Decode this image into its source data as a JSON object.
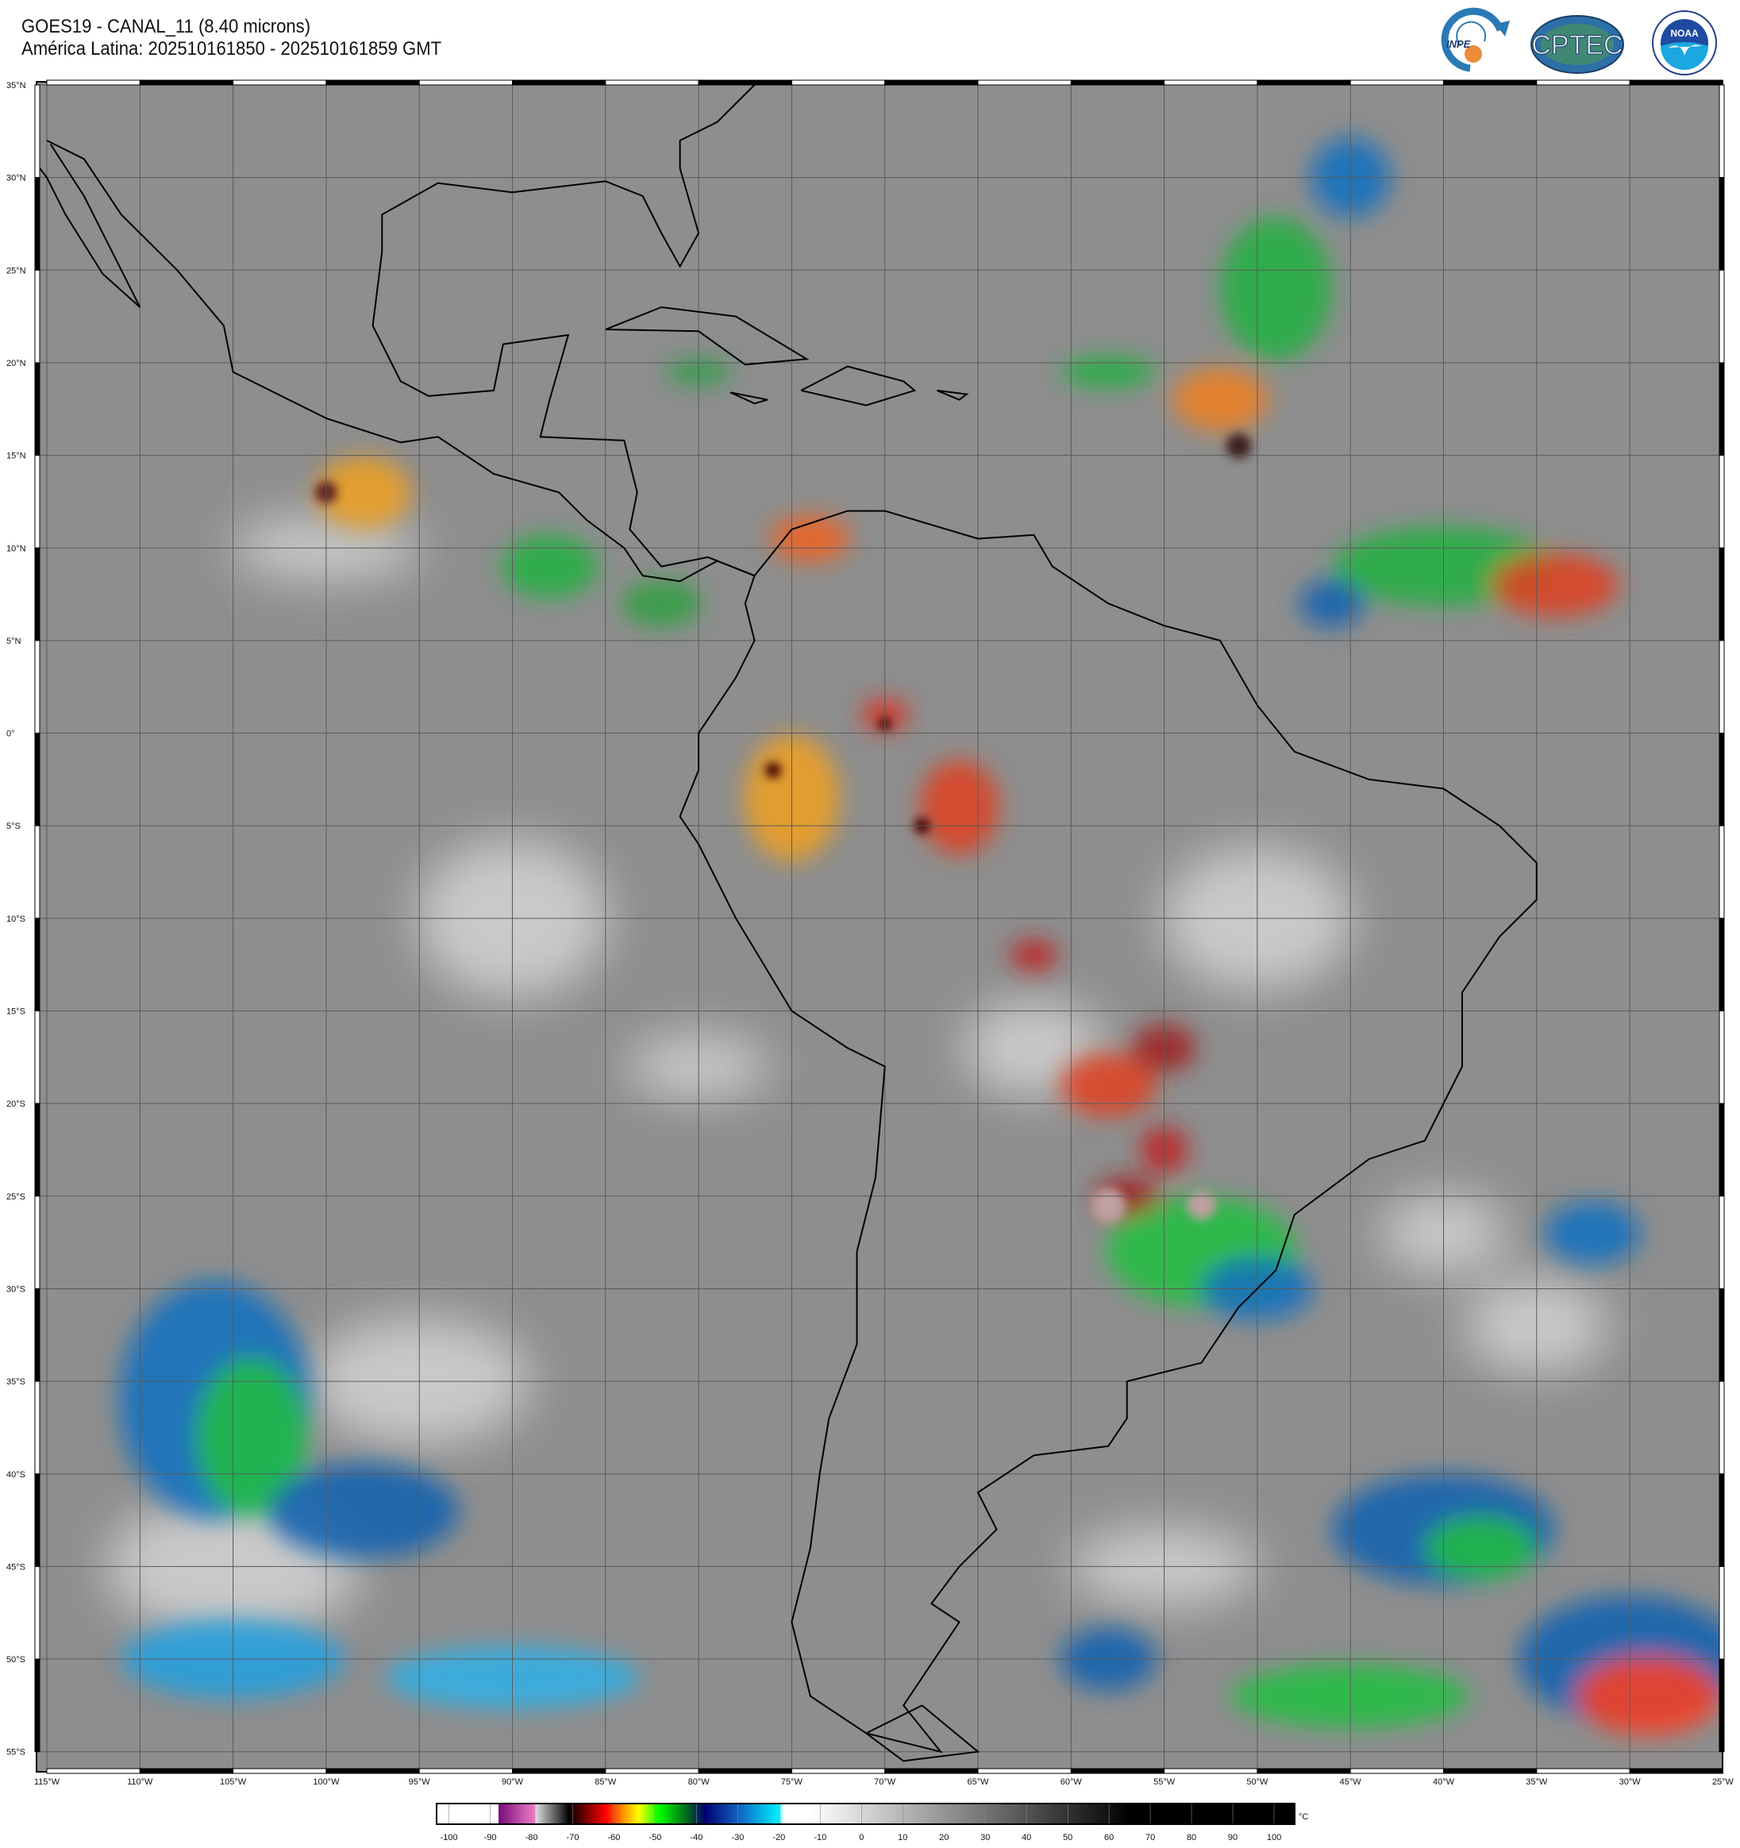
{
  "header": {
    "title": "GOES19 - CANAL_11 (8.40 microns)",
    "subtitle": "América Latina: 202510161850 - 202510161859 GMT"
  },
  "logos": {
    "inpe": "INPE",
    "cptec": "CPTEC",
    "noaa": "NOAA",
    "noaa_ring": "NATIONAL OCEANIC AND ATMOSPHERIC ADMINISTRATION · U.S. DEPARTMENT OF COMMERCE"
  },
  "map": {
    "lat_labels": [
      "35°N",
      "30°N",
      "25°N",
      "20°N",
      "15°N",
      "10°N",
      "5°N",
      "0°",
      "5°S",
      "10°S",
      "15°S",
      "20°S",
      "25°S",
      "30°S",
      "35°S",
      "40°S",
      "45°S",
      "50°S",
      "55°S"
    ],
    "lat_values": [
      35,
      30,
      25,
      20,
      15,
      10,
      5,
      0,
      -5,
      -10,
      -15,
      -20,
      -25,
      -30,
      -35,
      -40,
      -45,
      -50,
      -55
    ],
    "lon_labels": [
      "115°W",
      "110°W",
      "105°W",
      "100°W",
      "95°W",
      "90°W",
      "85°W",
      "80°W",
      "75°W",
      "70°W",
      "65°W",
      "60°W",
      "55°W",
      "50°W",
      "45°W",
      "40°W",
      "35°W",
      "30°W",
      "25°W"
    ],
    "lon_values": [
      -115,
      -110,
      -105,
      -100,
      -95,
      -90,
      -85,
      -80,
      -75,
      -70,
      -65,
      -60,
      -55,
      -50,
      -45,
      -40,
      -35,
      -30,
      -25
    ],
    "extent": {
      "lon": [
        -115,
        -25
      ],
      "lat": [
        -55,
        35
      ]
    },
    "grid_step_deg": 5,
    "background_color": "#8e8e8e",
    "coast_color": "#000000"
  },
  "colorbar": {
    "unit": "°C",
    "ticks": [
      "-100",
      "-90",
      "-80",
      "-70",
      "-60",
      "-50",
      "-40",
      "-30",
      "-20",
      "-10",
      "0",
      "10",
      "20",
      "30",
      "40",
      "50",
      "60",
      "70",
      "80",
      "90",
      "100"
    ],
    "tick_values": [
      -100,
      -90,
      -80,
      -70,
      -60,
      -50,
      -40,
      -30,
      -20,
      -10,
      0,
      10,
      20,
      30,
      40,
      50,
      60,
      70,
      80,
      90,
      100
    ],
    "range": [
      -103,
      105
    ],
    "stops": [
      {
        "v": -103,
        "c": "#ffffff"
      },
      {
        "v": -88,
        "c": "#ffffff"
      },
      {
        "v": -88,
        "c": "#7a0a7a"
      },
      {
        "v": -79,
        "c": "#f080c8"
      },
      {
        "v": -79,
        "c": "#dddddd"
      },
      {
        "v": -72,
        "c": "#222222"
      },
      {
        "v": -71,
        "c": "#000000"
      },
      {
        "v": -62,
        "c": "#ff0000"
      },
      {
        "v": -58,
        "c": "#ff8c00"
      },
      {
        "v": -54,
        "c": "#ffff00"
      },
      {
        "v": -49,
        "c": "#00ff00"
      },
      {
        "v": -42,
        "c": "#006020"
      },
      {
        "v": -38,
        "c": "#000070"
      },
      {
        "v": -30,
        "c": "#1060c0"
      },
      {
        "v": -20,
        "c": "#00f0ff"
      },
      {
        "v": -19,
        "c": "#ffffff"
      },
      {
        "v": -12,
        "c": "#ffffff"
      },
      {
        "v": 65,
        "c": "#000000"
      },
      {
        "v": 105,
        "c": "#000000"
      }
    ]
  }
}
